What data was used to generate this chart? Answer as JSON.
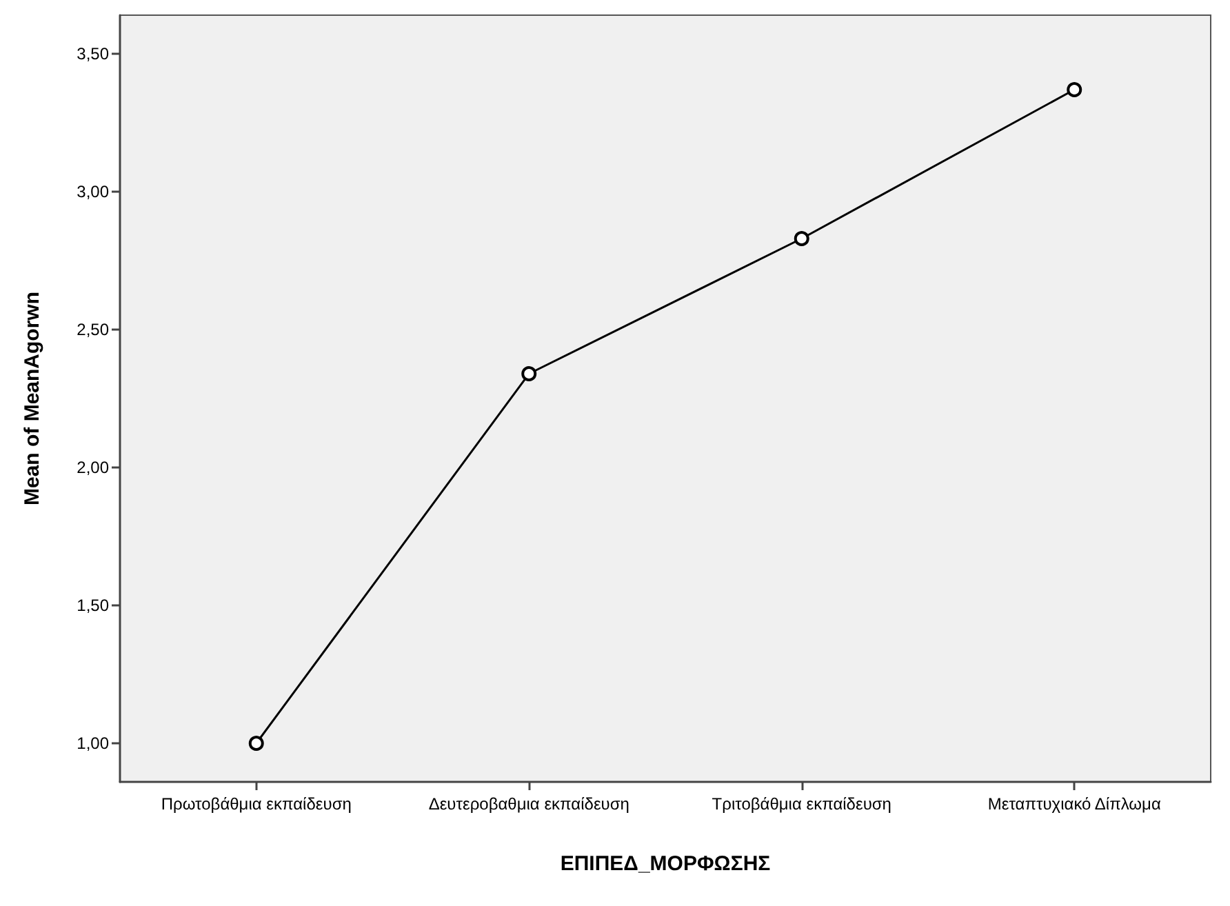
{
  "chart_data": {
    "type": "line",
    "xlabel": "ΕΠΙΠΕΔ_ΜΟΡΦΩΣΗΣ",
    "ylabel": "Mean of MeanAgorwn",
    "categories": [
      "Πρωτοβάθμια εκπαίδευση",
      "Δευτεροβαθμια εκπαίδευση",
      "Τριτοβάθμια εκπαίδευση",
      "Μεταπτυχιακό Δίπλωμα"
    ],
    "series": [
      {
        "color": "#000000",
        "values": [
          1.0,
          2.34,
          2.83,
          3.37
        ]
      }
    ],
    "ylim": [
      0.86,
      3.64
    ],
    "yticks": [
      {
        "value": 1,
        "label": "1,00"
      },
      {
        "value": 1.5,
        "label": "1,50"
      },
      {
        "value": 2,
        "label": "2,00"
      },
      {
        "value": 2.5,
        "label": "2,50"
      },
      {
        "value": 3,
        "label": "3,00"
      },
      {
        "value": 3.5,
        "label": "3,50"
      }
    ],
    "grid": false,
    "marker": "circle",
    "line_style": "solid"
  }
}
